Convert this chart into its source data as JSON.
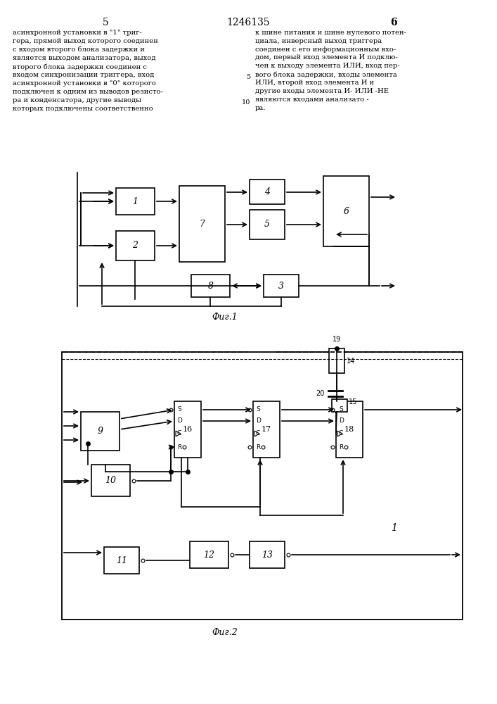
{
  "page_num_left": "5",
  "page_num_center": "1246135",
  "page_num_right": "6",
  "text_left": "асинхронной установки в \"1\" триг-\nгера, прямой выход которого соединен\nс входом второго блока задержки и\nявляется выходом анализатора, выход\nвторого блока задержки соединен с\nвходом синхронизации триггера, вход\nасинхронной установки в \"0\" которого\nподключен к одним из выводов резисто-\nра и конденсатора, другие выводы\nкоторых подключены соответственно",
  "text_right": "к шине питания и шине нулевого потен-\nциала, инверсный выход триггера\nсоединен с его информационным вхо-\nдом, первый вход элемента И подклю-\nчен к выходу элемента ИЛИ, вход пер-\nвого блока задержки, входы элемента\nИЛИ, второй вход элемента И и\nдругие входы элемента И- ИЛИ -НЕ\nявляются входами анализато -\nра.",
  "fig1_caption": "Фиг.1",
  "fig2_caption": "Фиг.2",
  "background": "#ffffff",
  "line_color": "#000000",
  "text_color": "#000000"
}
